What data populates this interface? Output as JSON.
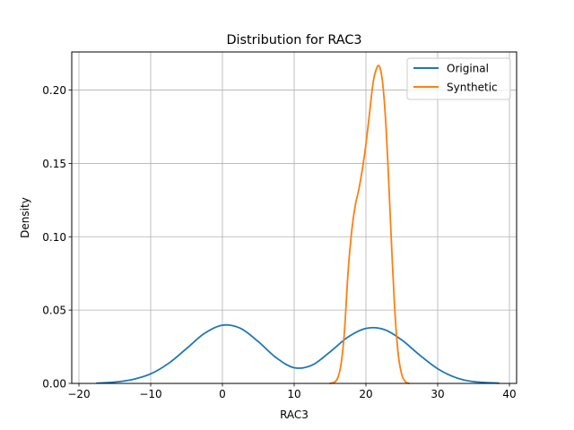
{
  "chart_data": {
    "type": "line",
    "title": "Distribution for RAC3",
    "xlabel": "RAC3",
    "ylabel": "Density",
    "xlim": [
      -21,
      41
    ],
    "ylim": [
      0,
      0.226
    ],
    "xticks": [
      -20,
      -10,
      0,
      10,
      20,
      30,
      40
    ],
    "xtick_labels": [
      "−20",
      "−10",
      "0",
      "10",
      "20",
      "30",
      "40"
    ],
    "yticks": [
      0,
      0.05,
      0.1,
      0.15,
      0.2
    ],
    "ytick_labels": [
      "0.00",
      "0.05",
      "0.10",
      "0.15",
      "0.20"
    ],
    "grid": true,
    "legend_position": "top-right",
    "series": [
      {
        "name": "Original",
        "color": "#1f77b4",
        "points": [
          [
            -17.5,
            0.0002
          ],
          [
            -15,
            0.0009
          ],
          [
            -12.5,
            0.0027
          ],
          [
            -10,
            0.0065
          ],
          [
            -7.5,
            0.0137
          ],
          [
            -5,
            0.0238
          ],
          [
            -2.5,
            0.0341
          ],
          [
            0,
            0.0397
          ],
          [
            2.5,
            0.0376
          ],
          [
            5,
            0.0285
          ],
          [
            7.5,
            0.0175
          ],
          [
            10,
            0.0107
          ],
          [
            12.5,
            0.0125
          ],
          [
            15,
            0.0215
          ],
          [
            17.5,
            0.0316
          ],
          [
            20,
            0.0375
          ],
          [
            22.5,
            0.0368
          ],
          [
            25,
            0.0296
          ],
          [
            27.5,
            0.0193
          ],
          [
            30,
            0.01
          ],
          [
            32.5,
            0.004
          ],
          [
            35,
            0.0012
          ],
          [
            38.5,
            0.0002
          ]
        ]
      },
      {
        "name": "Synthetic",
        "color": "#ff7f0e",
        "points": [
          [
            15.0,
            0.0
          ],
          [
            15.5,
            0.0006
          ],
          [
            16.0,
            0.003
          ],
          [
            16.5,
            0.012
          ],
          [
            17.0,
            0.035
          ],
          [
            17.5,
            0.075
          ],
          [
            18.0,
            0.103
          ],
          [
            18.5,
            0.121
          ],
          [
            19.0,
            0.132
          ],
          [
            19.5,
            0.146
          ],
          [
            20.0,
            0.163
          ],
          [
            20.5,
            0.184
          ],
          [
            21.0,
            0.205
          ],
          [
            21.5,
            0.215
          ],
          [
            21.9,
            0.216
          ],
          [
            22.3,
            0.206
          ],
          [
            22.7,
            0.183
          ],
          [
            23.1,
            0.146
          ],
          [
            23.5,
            0.102
          ],
          [
            24.0,
            0.052
          ],
          [
            24.5,
            0.02
          ],
          [
            25.0,
            0.006
          ],
          [
            25.5,
            0.0012
          ],
          [
            26.0,
            0.0
          ]
        ]
      }
    ]
  }
}
